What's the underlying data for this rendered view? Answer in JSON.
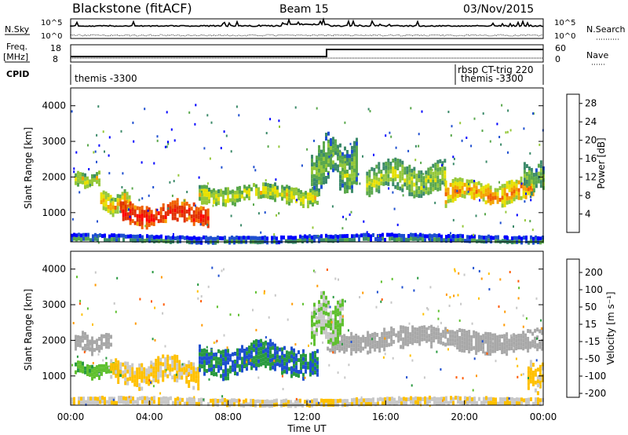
{
  "header": {
    "station": "Blackstone (fitACF)",
    "beam": "Beam 15",
    "date": "03/Nov/2015"
  },
  "side_labels": {
    "nsky": "N.Sky",
    "nsearch": "N.Search",
    "freq_line1": "Freq.",
    "freq_line2": "[MHz]",
    "nave": "Nave",
    "cpid": "CPID"
  },
  "ticks": {
    "nsky_top": "10^5",
    "nsky_bottom": "10^0",
    "freq_top": "18",
    "freq_bottom": "8",
    "nave_top": "60",
    "nave_bottom": "0"
  },
  "cpid_labels": [
    {
      "text": "themis -3300",
      "time_h": 0.1
    },
    {
      "text": "rbsp CT-trig 220",
      "time_h": 19.0
    },
    {
      "text": "themis -3300",
      "time_h": 19.2
    }
  ],
  "colors": {
    "power": [
      "#0000ff",
      "#1f4fd0",
      "#3c8a6a",
      "#5aa84c",
      "#95c83a",
      "#e8e000",
      "#f4a300",
      "#f06000",
      "#e03000",
      "#ff0000"
    ],
    "velocity": [
      "#ff0000",
      "#ff5a00",
      "#ff9a00",
      "#ffc000",
      "#c8c8c8",
      "#c8c8c8",
      "#60c030",
      "#2a9a40",
      "#2050d0",
      "#1010b0"
    ],
    "ground": "#a8a8a8"
  },
  "chart_data": [
    {
      "type": "heatmap",
      "title": "Power",
      "xlabel": "Time UT",
      "ylabel": "Slant Range [km]",
      "xlim": [
        0,
        24
      ],
      "ylim": [
        180,
        4500
      ],
      "x_ticks": [
        "00:00",
        "04:00",
        "08:00",
        "12:00",
        "16:00",
        "20:00",
        "00:00"
      ],
      "y_ticks": [
        "1000",
        "2000",
        "3000",
        "4000"
      ],
      "colorbar_label": "Power [dB]",
      "colorbar_ticks": [
        "4",
        "8",
        "12",
        "16",
        "20",
        "24",
        "28"
      ],
      "colorbar_range": [
        0,
        30
      ],
      "bands": [
        {
          "t_start": 0.2,
          "t_end": 1.5,
          "r_center": 1950,
          "r_half": 150,
          "value": 14
        },
        {
          "t_start": 1.5,
          "t_end": 3.0,
          "r_center": 1300,
          "r_half": 220,
          "value": 16
        },
        {
          "t_start": 2.5,
          "t_end": 7.0,
          "r_center": 1000,
          "r_half": 250,
          "value": 25
        },
        {
          "t_start": 6.5,
          "t_end": 12.5,
          "r_center": 1550,
          "r_half": 220,
          "value": 14
        },
        {
          "t_start": 12.2,
          "t_end": 14.5,
          "r_center": 2400,
          "r_half": 600,
          "value": 10
        },
        {
          "t_start": 15.0,
          "t_end": 19.0,
          "r_center": 2000,
          "r_half": 350,
          "value": 12
        },
        {
          "t_start": 19.0,
          "t_end": 23.5,
          "r_center": 1600,
          "r_half": 280,
          "value": 18
        },
        {
          "t_start": 23.0,
          "t_end": 24.0,
          "r_center": 2000,
          "r_half": 300,
          "value": 10
        },
        {
          "t_start": 0.0,
          "t_end": 24.0,
          "r_center": 290,
          "r_half": 90,
          "value": 6
        }
      ]
    },
    {
      "type": "heatmap",
      "title": "Velocity",
      "xlabel": "Time UT",
      "ylabel": "Slant Range [km]",
      "xlim": [
        0,
        24
      ],
      "ylim": [
        180,
        4500
      ],
      "x_ticks": [
        "00:00",
        "04:00",
        "08:00",
        "12:00",
        "16:00",
        "20:00",
        "00:00"
      ],
      "y_ticks": [
        "1000",
        "2000",
        "3000",
        "4000"
      ],
      "colorbar_label": "Velocity [m s⁻¹]",
      "colorbar_ticks": [
        "200",
        "100",
        "50",
        "15",
        "-15",
        "-50",
        "-100",
        "-200"
      ],
      "colorbar_range": [
        -250,
        250
      ],
      "bands": [
        {
          "t_start": 0.2,
          "t_end": 2.0,
          "r_center": 1950,
          "r_half": 200,
          "value": 0,
          "ground": true
        },
        {
          "t_start": 0.2,
          "t_end": 2.5,
          "r_center": 1200,
          "r_half": 150,
          "value": 80
        },
        {
          "t_start": 2.0,
          "t_end": 6.5,
          "r_center": 1150,
          "r_half": 300,
          "value": -60
        },
        {
          "t_start": 6.5,
          "t_end": 12.5,
          "r_center": 1500,
          "r_half": 350,
          "value": 150
        },
        {
          "t_start": 13.0,
          "t_end": 24.0,
          "r_center": 2050,
          "r_half": 250,
          "value": 0,
          "ground": true
        },
        {
          "t_start": 12.2,
          "t_end": 13.8,
          "r_center": 2600,
          "r_half": 500,
          "value": 60
        },
        {
          "t_start": 23.2,
          "t_end": 24.0,
          "r_center": 1000,
          "r_half": 300,
          "value": -70
        },
        {
          "t_start": 0.0,
          "t_end": 24.0,
          "r_center": 300,
          "r_half": 90,
          "value": -40
        }
      ]
    }
  ]
}
